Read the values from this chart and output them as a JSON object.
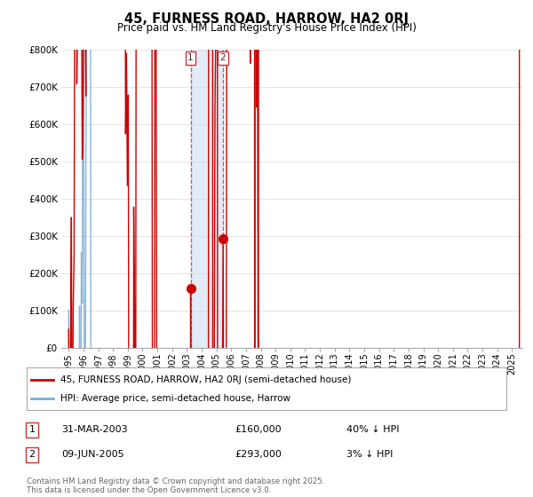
{
  "title": "45, FURNESS ROAD, HARROW, HA2 0RJ",
  "subtitle": "Price paid vs. HM Land Registry's House Price Index (HPI)",
  "ylim": [
    0,
    800000
  ],
  "yticks": [
    0,
    100000,
    200000,
    300000,
    400000,
    500000,
    600000,
    700000,
    800000
  ],
  "ytick_labels": [
    "£0",
    "£100K",
    "£200K",
    "£300K",
    "£400K",
    "£500K",
    "£600K",
    "£700K",
    "£800K"
  ],
  "xlim_start": 1994.5,
  "xlim_end": 2025.7,
  "purchases": [
    {
      "label": "1",
      "date_str": "31-MAR-2003",
      "year": 2003.25,
      "price": 160000,
      "hpi_diff": "40% ↓ HPI"
    },
    {
      "label": "2",
      "date_str": "09-JUN-2005",
      "year": 2005.44,
      "price": 293000,
      "hpi_diff": "3% ↓ HPI"
    }
  ],
  "line_color_price": "#cc0000",
  "line_color_hpi": "#7aaed6",
  "shade_color": "#c8d8ee",
  "shade_alpha": 0.5,
  "legend_label_price": "45, FURNESS ROAD, HARROW, HA2 0RJ (semi-detached house)",
  "legend_label_hpi": "HPI: Average price, semi-detached house, Harrow",
  "footnote": "Contains HM Land Registry data © Crown copyright and database right 2025.\nThis data is licensed under the Open Government Licence v3.0.",
  "background_color": "#ffffff",
  "grid_color": "#e0e0e0"
}
